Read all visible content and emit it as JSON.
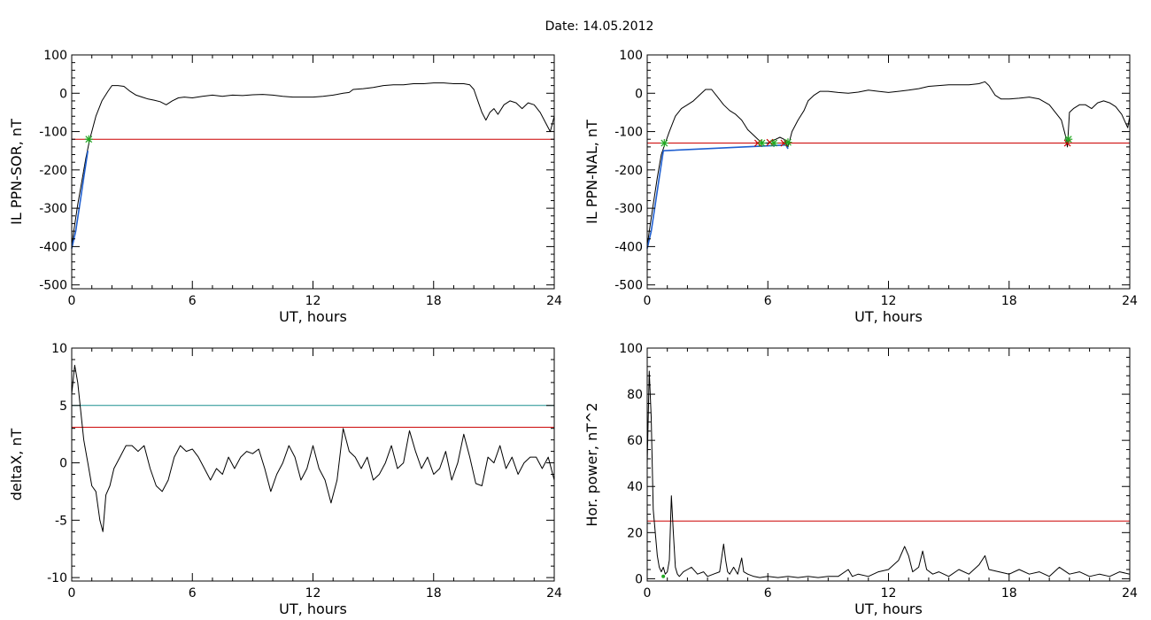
{
  "title": "Date:  14.05.2012",
  "chart_data": [
    {
      "type": "line",
      "panel": "top-left",
      "xlabel": "UT, hours",
      "ylabel": "IL PPN-SOR, nT",
      "xlim": [
        0,
        24
      ],
      "ylim": [
        -510,
        100
      ],
      "xticks": [
        0,
        6,
        12,
        18,
        24
      ],
      "yticks": [
        100,
        0,
        -100,
        -200,
        -300,
        -400,
        -500
      ],
      "grid": false,
      "series": [
        {
          "color": "#000000",
          "x": [
            0,
            0.1,
            0.3,
            0.5,
            0.7,
            0.9,
            1.2,
            1.5,
            1.8,
            2.0,
            2.3,
            2.6,
            2.9,
            3.2,
            3.5,
            3.8,
            4.1,
            4.4,
            4.7,
            5.0,
            5.3,
            5.6,
            6.0,
            6.5,
            7.0,
            7.5,
            8.0,
            8.5,
            9.0,
            9.5,
            10.0,
            10.5,
            11.0,
            11.5,
            12.0,
            12.5,
            13.0,
            13.5,
            13.8,
            14.0,
            14.5,
            15.0,
            15.5,
            16.0,
            16.5,
            17.0,
            17.5,
            18.0,
            18.5,
            19.0,
            19.5,
            19.8,
            20.0,
            20.2,
            20.4,
            20.6,
            20.8,
            21.0,
            21.2,
            21.5,
            21.8,
            22.1,
            22.4,
            22.7,
            23.0,
            23.3,
            23.6,
            23.8,
            24.0
          ],
          "y": [
            -400,
            -360,
            -290,
            -230,
            -170,
            -120,
            -60,
            -20,
            5,
            20,
            20,
            18,
            5,
            -5,
            -10,
            -15,
            -18,
            -22,
            -30,
            -20,
            -12,
            -10,
            -12,
            -8,
            -5,
            -8,
            -5,
            -6,
            -4,
            -3,
            -5,
            -8,
            -10,
            -10,
            -10,
            -8,
            -5,
            0,
            2,
            10,
            12,
            15,
            20,
            22,
            22,
            25,
            25,
            27,
            27,
            25,
            25,
            22,
            10,
            -20,
            -50,
            -70,
            -50,
            -40,
            -55,
            -30,
            -20,
            -25,
            -40,
            -25,
            -30,
            -50,
            -80,
            -100,
            -60
          ]
        },
        {
          "color": "#1f5fd0",
          "x": [
            0,
            0.2,
            0.4,
            0.6,
            0.8
          ],
          "y": [
            -405,
            -360,
            -290,
            -220,
            -150
          ]
        }
      ],
      "hlines": [
        {
          "value": -120,
          "color": "#cc0000"
        }
      ],
      "markers": [
        {
          "x": 0.85,
          "y": -120,
          "symbol": "asterisk",
          "color": "#22aa22"
        }
      ]
    },
    {
      "type": "line",
      "panel": "top-right",
      "xlabel": "UT, hours",
      "ylabel": "IL PPN-NAL, nT",
      "xlim": [
        0,
        24
      ],
      "ylim": [
        -510,
        100
      ],
      "xticks": [
        0,
        6,
        12,
        18,
        24
      ],
      "yticks": [
        100,
        0,
        -100,
        -200,
        -300,
        -400,
        -500
      ],
      "grid": false,
      "series": [
        {
          "color": "#000000",
          "x": [
            0,
            0.1,
            0.3,
            0.5,
            0.7,
            0.9,
            1.1,
            1.4,
            1.7,
            2.0,
            2.3,
            2.6,
            2.9,
            3.2,
            3.5,
            3.8,
            4.1,
            4.4,
            4.7,
            5.0,
            5.3,
            5.6,
            5.8,
            6.0,
            6.2,
            6.4,
            6.6,
            6.8,
            7.0,
            7.2,
            7.5,
            7.8,
            8.0,
            8.3,
            8.6,
            9.0,
            9.5,
            10.0,
            10.5,
            11.0,
            11.5,
            12.0,
            12.5,
            13.0,
            13.5,
            14.0,
            14.5,
            15.0,
            15.5,
            16.0,
            16.5,
            16.8,
            17.0,
            17.3,
            17.6,
            18.0,
            18.5,
            19.0,
            19.5,
            20.0,
            20.3,
            20.6,
            20.8,
            20.9,
            21.0,
            21.2,
            21.5,
            21.8,
            22.1,
            22.4,
            22.7,
            23.0,
            23.3,
            23.6,
            23.9,
            24.0
          ],
          "y": [
            -400,
            -360,
            -290,
            -220,
            -160,
            -130,
            -100,
            -60,
            -40,
            -30,
            -20,
            -5,
            10,
            10,
            -10,
            -30,
            -45,
            -55,
            -70,
            -95,
            -110,
            -125,
            -130,
            -130,
            -125,
            -120,
            -115,
            -120,
            -140,
            -100,
            -70,
            -45,
            -20,
            -5,
            5,
            5,
            2,
            0,
            3,
            8,
            5,
            2,
            5,
            8,
            12,
            18,
            20,
            22,
            22,
            22,
            25,
            30,
            20,
            -5,
            -15,
            -15,
            -13,
            -10,
            -15,
            -30,
            -50,
            -70,
            -110,
            -140,
            -50,
            -40,
            -30,
            -30,
            -40,
            -25,
            -20,
            -25,
            -35,
            -55,
            -90,
            -60
          ]
        },
        {
          "color": "#1f5fd0",
          "x": [
            0,
            0.2,
            0.4,
            0.6,
            0.8,
            6.9,
            7.0
          ],
          "y": [
            -405,
            -360,
            -290,
            -220,
            -150,
            -135,
            -145
          ]
        }
      ],
      "hlines": [
        {
          "value": -130,
          "color": "#cc0000"
        }
      ],
      "markers": [
        {
          "x": 0.85,
          "y": -130,
          "symbol": "asterisk",
          "color": "#22aa22"
        },
        {
          "x": 5.5,
          "y": -130,
          "symbol": "x",
          "color": "#cc0000"
        },
        {
          "x": 5.7,
          "y": -130,
          "symbol": "asterisk",
          "color": "#22aa22"
        },
        {
          "x": 6.1,
          "y": -128,
          "symbol": "x",
          "color": "#cc0000"
        },
        {
          "x": 6.3,
          "y": -130,
          "symbol": "asterisk",
          "color": "#22aa22"
        },
        {
          "x": 6.8,
          "y": -130,
          "symbol": "x",
          "color": "#cc0000"
        },
        {
          "x": 7.0,
          "y": -128,
          "symbol": "asterisk",
          "color": "#22aa22"
        },
        {
          "x": 20.9,
          "y": -130,
          "symbol": "x",
          "color": "#cc0000"
        },
        {
          "x": 20.95,
          "y": -120,
          "symbol": "asterisk",
          "color": "#22aa22"
        }
      ]
    },
    {
      "type": "line",
      "panel": "bottom-left",
      "xlabel": "UT, hours",
      "ylabel": "deltaX, nT",
      "xlim": [
        0,
        24
      ],
      "ylim": [
        -10.3,
        10
      ],
      "xticks": [
        0,
        6,
        12,
        18,
        24
      ],
      "yticks": [
        10,
        5,
        0,
        -5,
        -10
      ],
      "grid": false,
      "series": [
        {
          "color": "#000000",
          "x": [
            0,
            0.15,
            0.3,
            0.45,
            0.6,
            0.8,
            1.0,
            1.2,
            1.4,
            1.55,
            1.7,
            1.9,
            2.1,
            2.4,
            2.7,
            3.0,
            3.3,
            3.6,
            3.9,
            4.2,
            4.5,
            4.8,
            5.1,
            5.4,
            5.7,
            6.0,
            6.3,
            6.6,
            6.9,
            7.2,
            7.5,
            7.8,
            8.1,
            8.4,
            8.7,
            9.0,
            9.3,
            9.6,
            9.9,
            10.2,
            10.5,
            10.8,
            11.1,
            11.4,
            11.7,
            12.0,
            12.3,
            12.6,
            12.9,
            13.2,
            13.5,
            13.8,
            14.1,
            14.4,
            14.7,
            15.0,
            15.3,
            15.6,
            15.9,
            16.2,
            16.5,
            16.8,
            17.1,
            17.4,
            17.7,
            18.0,
            18.3,
            18.6,
            18.9,
            19.2,
            19.5,
            19.8,
            20.1,
            20.4,
            20.7,
            21.0,
            21.3,
            21.6,
            21.9,
            22.2,
            22.5,
            22.8,
            23.1,
            23.4,
            23.7,
            24.0
          ],
          "y": [
            6,
            8.5,
            7,
            4.5,
            2,
            0,
            -2,
            -2.5,
            -5,
            -6,
            -2.8,
            -2,
            -0.5,
            0.5,
            1.5,
            1.5,
            1,
            1.5,
            -0.5,
            -2,
            -2.5,
            -1.5,
            0.5,
            1.5,
            1,
            1.2,
            0.5,
            -0.5,
            -1.5,
            -0.5,
            -1,
            0.5,
            -0.5,
            0.5,
            1,
            0.8,
            1.2,
            -0.5,
            -2.5,
            -1,
            0,
            1.5,
            0.5,
            -1.5,
            -0.5,
            1.5,
            -0.5,
            -1.5,
            -3.5,
            -1.5,
            3,
            1,
            0.5,
            -0.5,
            0.5,
            -1.5,
            -1,
            0,
            1.5,
            -0.5,
            0,
            2.8,
            1,
            -0.5,
            0.5,
            -1,
            -0.5,
            1,
            -1.5,
            0,
            2.5,
            0.5,
            -1.8,
            -2,
            0.5,
            0,
            1.5,
            -0.5,
            0.5,
            -1,
            0,
            0.5,
            0.5,
            -0.5,
            0.5,
            -1.5
          ]
        }
      ],
      "hlines": [
        {
          "value": 5,
          "color": "#1b8f8f"
        },
        {
          "value": 3.1,
          "color": "#cc0000"
        }
      ]
    },
    {
      "type": "line",
      "panel": "bottom-right",
      "xlabel": "UT, hours",
      "ylabel": "Hor. power, nT^2",
      "xlim": [
        0,
        24
      ],
      "ylim": [
        -1,
        100
      ],
      "xticks": [
        0,
        6,
        12,
        18,
        24
      ],
      "yticks": [
        100,
        80,
        60,
        40,
        20,
        0
      ],
      "grid": false,
      "series": [
        {
          "color": "#000000",
          "x": [
            0,
            0.1,
            0.2,
            0.3,
            0.4,
            0.5,
            0.6,
            0.7,
            0.8,
            0.9,
            1.0,
            1.1,
            1.2,
            1.3,
            1.4,
            1.5,
            1.6,
            1.7,
            1.8,
            2.0,
            2.2,
            2.5,
            2.8,
            3.0,
            3.3,
            3.6,
            3.8,
            3.9,
            4.0,
            4.1,
            4.3,
            4.5,
            4.7,
            4.8,
            5.0,
            5.3,
            5.6,
            6.0,
            6.5,
            7.0,
            7.5,
            8.0,
            8.5,
            9.0,
            9.5,
            10.0,
            10.2,
            10.5,
            11.0,
            11.5,
            12.0,
            12.5,
            12.8,
            13.0,
            13.2,
            13.5,
            13.7,
            13.9,
            14.2,
            14.5,
            15.0,
            15.5,
            16.0,
            16.5,
            16.8,
            17.0,
            17.5,
            18.0,
            18.5,
            19.0,
            19.5,
            20.0,
            20.5,
            21.0,
            21.5,
            22.0,
            22.5,
            23.0,
            23.5,
            24.0
          ],
          "y": [
            50,
            90,
            70,
            30,
            20,
            10,
            5,
            3,
            5,
            2,
            3,
            8,
            36,
            20,
            5,
            2,
            1,
            2,
            3,
            4,
            5,
            2,
            3,
            1,
            2,
            3,
            15,
            8,
            3,
            2,
            5,
            2,
            9,
            3,
            2,
            1,
            0.5,
            1,
            0.5,
            1,
            0.5,
            1,
            0.5,
            1,
            1,
            4,
            1,
            2,
            1,
            3,
            4,
            8,
            14,
            10,
            3,
            5,
            12,
            4,
            2,
            3,
            1,
            4,
            2,
            6,
            10,
            4,
            3,
            2,
            4,
            2,
            3,
            1,
            5,
            2,
            3,
            1,
            2,
            1,
            3,
            2
          ]
        }
      ],
      "hlines": [
        {
          "value": 25,
          "color": "#cc0000"
        }
      ],
      "markers": [
        {
          "x": 0.8,
          "y": 1,
          "symbol": "dot",
          "color": "#22aa22"
        }
      ]
    }
  ]
}
